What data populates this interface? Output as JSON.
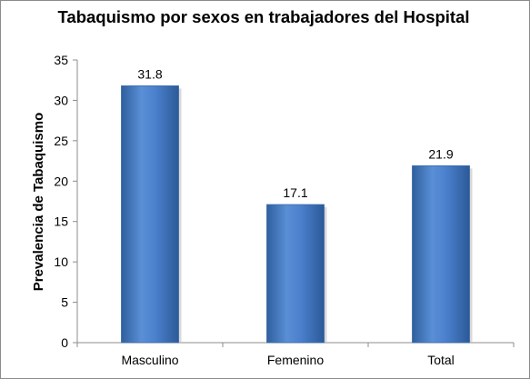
{
  "chart_data": {
    "type": "bar",
    "title": "Tabaquismo por sexos en trabajadores del Hospital",
    "xlabel": "",
    "ylabel": "Prevalencia de Tabaquismo",
    "categories": [
      "Masculino",
      "Femenino",
      "Total"
    ],
    "values": [
      31.8,
      17.1,
      21.9
    ],
    "data_labels": [
      "31.8",
      "17.1",
      "21.9"
    ],
    "ylim": [
      0,
      35
    ],
    "yticks": [
      0,
      5,
      10,
      15,
      20,
      25,
      30,
      35
    ],
    "grid": false,
    "legend": "none",
    "bar_color": "#4a7fcc"
  }
}
